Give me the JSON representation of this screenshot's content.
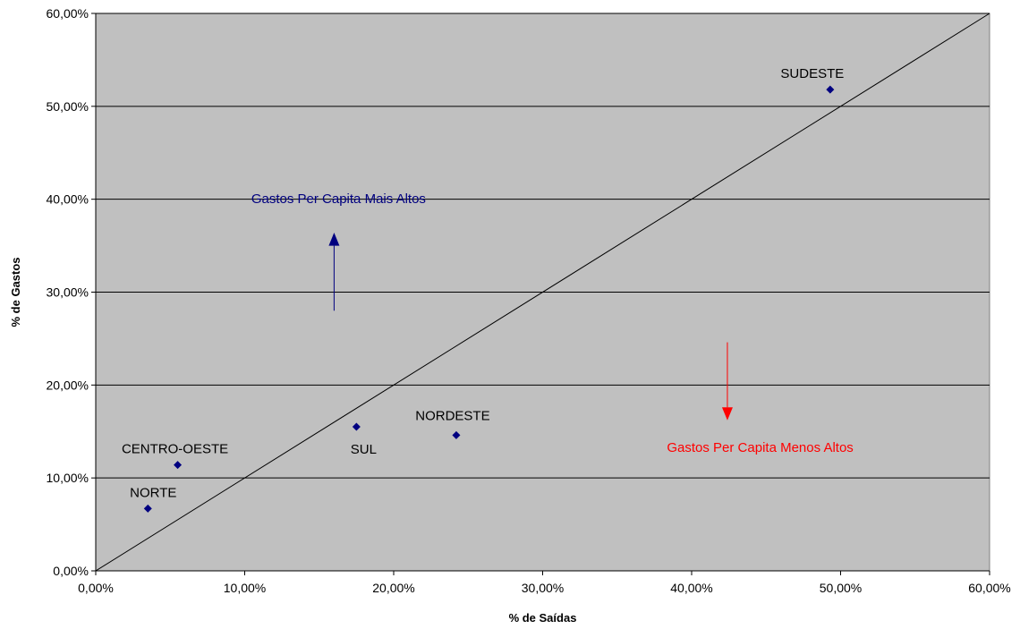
{
  "chart_data": {
    "type": "scatter",
    "xlabel": "% de Saídas",
    "ylabel": "% de Gastos",
    "xlim": [
      0,
      60
    ],
    "ylim": [
      0,
      60
    ],
    "x_ticks": [
      "0,00%",
      "10,00%",
      "20,00%",
      "30,00%",
      "40,00%",
      "50,00%",
      "60,00%"
    ],
    "y_ticks": [
      "0,00%",
      "10,00%",
      "20,00%",
      "30,00%",
      "40,00%",
      "50,00%",
      "60,00%"
    ],
    "grid": "horizontal",
    "legend": "none",
    "plot_background": "#c0c0c0",
    "marker_color": "#000080",
    "points": [
      {
        "label": "NORTE",
        "x": 3.5,
        "y": 6.7
      },
      {
        "label": "CENTRO-OESTE",
        "x": 5.5,
        "y": 11.4
      },
      {
        "label": "SUL",
        "x": 17.5,
        "y": 15.5
      },
      {
        "label": "NORDESTE",
        "x": 24.2,
        "y": 14.6
      },
      {
        "label": "SUDESTE",
        "x": 49.3,
        "y": 51.8
      }
    ],
    "reference_line": {
      "from": [
        0,
        0
      ],
      "to": [
        60,
        60
      ]
    },
    "annotations": [
      {
        "text": "Gastos Per Capita Mais Altos",
        "color": "#000080",
        "direction": "up"
      },
      {
        "text": "Gastos Per Capita Menos Altos",
        "color": "#ff0000",
        "direction": "down"
      }
    ]
  }
}
